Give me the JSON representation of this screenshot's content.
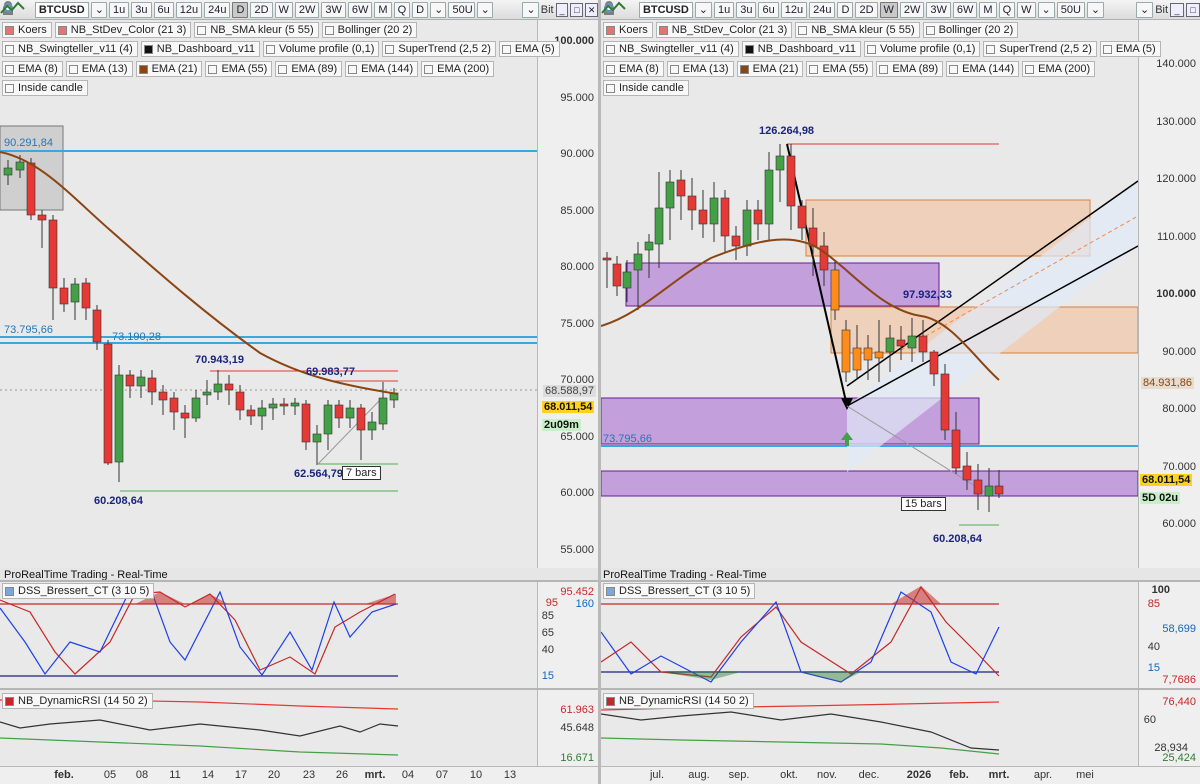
{
  "left": {
    "toolbar": {
      "symbol": "BTCUSD",
      "periods": [
        "1u",
        "3u",
        "6u",
        "12u",
        "24u",
        "D",
        "2D",
        "W",
        "2W",
        "3W",
        "6W",
        "M",
        "Q"
      ],
      "active_period": "D",
      "timeframe": "D",
      "units": "50U",
      "search_hint": "Bit"
    },
    "indicators_row1": [
      "Koers",
      "NB_StDev_Color (21 3)",
      "NB_SMA kleur (5 55)",
      "Bollinger (20 2)"
    ],
    "indicators_row2": [
      "NB_Swingteller_v11 (4)",
      "NB_Dashboard_v11",
      "Volume profile (0,1)",
      "SuperTrend (2,5 2)",
      "EMA (5)"
    ],
    "indicators_row3": [
      "EMA (8)",
      "EMA (13)",
      "EMA (21)",
      "EMA (55)",
      "EMA (89)",
      "EMA (144)",
      "EMA (200)"
    ],
    "indicators_row4": [
      "Inside candle"
    ],
    "y_ticks": [
      "100.000",
      "95.000",
      "90.000",
      "85.000",
      "80.000",
      "75.000",
      "70.000",
      "65.000",
      "60.000",
      "55.000"
    ],
    "level_labels": {
      "top_left": "90.291,84",
      "mid_left": "73.795,66",
      "mid_left2": "73.190,28"
    },
    "price_tags": {
      "prev": "68.588,97",
      "last": "68.011,54",
      "timer": "2u09m"
    },
    "annotations": {
      "a1": "70.943,19",
      "a2": "69.983,77",
      "a3": "62.564,79",
      "a4": "60.208,64",
      "bars": "7 bars"
    },
    "footer_label": "ProRealTime Trading - Real-Time",
    "dss": {
      "title": "DSS_Bressert_CT (3 10 5)",
      "ticks": [
        "95.452",
        "95",
        "160",
        "85",
        "65",
        "40",
        "15"
      ]
    },
    "rsi": {
      "title": "NB_DynamicRSI (14 50 2)",
      "ticks": [
        "61.963",
        "45.648",
        "16.671"
      ]
    },
    "x_labels": [
      "feb.",
      "05",
      "08",
      "11",
      "14",
      "17",
      "20",
      "23",
      "26",
      "mrt.",
      "04",
      "07",
      "10",
      "13"
    ]
  },
  "right": {
    "toolbar": {
      "symbol": "BTCUSD",
      "periods": [
        "1u",
        "3u",
        "6u",
        "12u",
        "24u",
        "D",
        "2D",
        "W",
        "2W",
        "3W",
        "6W",
        "M",
        "Q"
      ],
      "active_period": "W",
      "timeframe": "W",
      "units": "50U",
      "search_hint": "Bit"
    },
    "indicators_row1": [
      "Koers",
      "NB_StDev_Color (21 3)",
      "NB_SMA kleur (5 55)",
      "Bollinger (20 2)"
    ],
    "indicators_row2": [
      "NB_Swingteller_v11 (4)",
      "NB_Dashboard_v11",
      "Volume profile (0,1)",
      "SuperTrend (2,5 2)",
      "EMA (5)"
    ],
    "indicators_row3": [
      "EMA (8)",
      "EMA (13)",
      "EMA (21)",
      "EMA (55)",
      "EMA (89)",
      "EMA (144)",
      "EMA (200)"
    ],
    "indicators_row4": [
      "Inside candle"
    ],
    "y_ticks": [
      "140.000",
      "130.000",
      "120.000",
      "110.000",
      "100.000",
      "90.000",
      "80.000",
      "70.000",
      "60.000"
    ],
    "level_labels": {
      "mid_left": "73.795,66"
    },
    "price_tags": {
      "prev": "84.931,86",
      "last": "68.011,54",
      "timer": "5D 02u"
    },
    "annotations": {
      "a1": "126.264,98",
      "a2": "97.932,33",
      "a3": "60.208,64",
      "bars": "15 bars"
    },
    "footer_label": "ProRealTime Trading - Real-Time",
    "dss": {
      "title": "DSS_Bressert_CT (3 10 5)",
      "ticks": [
        "100",
        "85",
        "58,699",
        "40",
        "15",
        "7,7686"
      ]
    },
    "rsi": {
      "title": "NB_DynamicRSI (14 50 2)",
      "ticks": [
        "76,440",
        "60",
        "28,934",
        "25,424"
      ]
    },
    "x_labels": [
      "jul.",
      "aug.",
      "sep.",
      "okt.",
      "nov.",
      "dec.",
      "2026",
      "feb.",
      "mrt.",
      "apr.",
      "mei"
    ]
  },
  "colors": {
    "candle_up": "#43a047",
    "candle_down": "#e53935",
    "ema": "#8b4513",
    "cyan_line": "#3aa8e0",
    "purple_zone": "#b27fd6",
    "orange_zone": "#f4b183"
  }
}
